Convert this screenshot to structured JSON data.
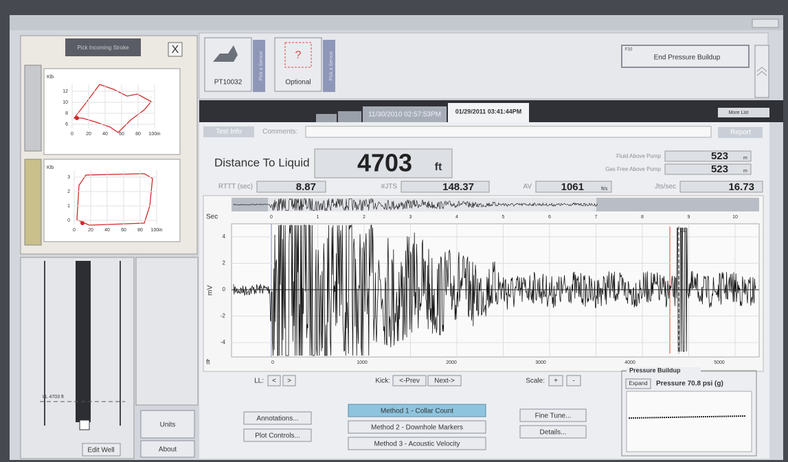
{
  "toolbar": {
    "sensor_1": "PT10032",
    "pick_1": "Pick a Sensor",
    "sensor_2_icon": "?",
    "sensor_2": "Optional",
    "pick_2": "Pick a Sensor",
    "end_key": "F10",
    "end_button": "End Pressure Buildup"
  },
  "tabs": [
    "11/30/2010 02:57:53PM",
    "01/29/2011 03:41:44PM"
  ],
  "more_list": "More List",
  "info": {
    "test_info": "Test Info",
    "comments": "Comments:",
    "report": "Report"
  },
  "results": {
    "distance_label": "Distance To Liquid",
    "distance": "4703",
    "distance_unit": "ft",
    "fluid_label": "Fluid Above Pump",
    "fluid": "523",
    "fluid_unit": "m",
    "gas_label": "Gas Free Above Pump",
    "gas": "523",
    "gas_unit": "m",
    "rttt_label": "RTTT (sec)",
    "rttt": "8.87",
    "jts_label": "#JTS",
    "jts": "148.37",
    "av_label": "AV",
    "av": "1061",
    "av_unit": "ft/s",
    "jps_label": "Jts/sec",
    "jps": "16.73"
  },
  "plot": {
    "sec_label": "Sec",
    "sec_ticks": [
      "0",
      "1",
      "2",
      "3",
      "4",
      "5",
      "6",
      "7",
      "8",
      "9",
      "10"
    ],
    "mv_label": "mV",
    "mv_ticks": [
      "4",
      "2",
      "0",
      "-2",
      "-4"
    ],
    "ft_label": "ft",
    "ft_ticks": [
      "0",
      "1000",
      "2000",
      "3000",
      "4000",
      "5000"
    ],
    "marker": "LL"
  },
  "controls": {
    "ll": "LL:",
    "ll_prev": "<",
    "ll_next": ">",
    "kick": "Kick:",
    "prev": "<-Prev",
    "next": "Next->",
    "scale": "Scale:",
    "plus": "+",
    "minus": "-"
  },
  "buttons": {
    "annotations": "Annotations...",
    "plot_controls": "Plot Controls...",
    "method_1": "Method 1 - Collar Count",
    "method_2": "Method 2 - Downhole Markers",
    "method_3": "Method 3 - Acoustic Velocity",
    "fine_tune": "Fine Tune...",
    "details": "Details...",
    "units": "Units",
    "about": "About",
    "edit_well": "Edit Well"
  },
  "pressure": {
    "title": "Pressure Buildup",
    "expand": "Expand",
    "reading": "Pressure 70.8 psi (g)"
  },
  "dyno": {
    "title": "Pick Incoming Stroke",
    "close": "X",
    "card_1": {
      "y_label": "Klb",
      "yticks": [
        "12",
        "10",
        "8",
        "6"
      ],
      "xticks": [
        "0",
        "20",
        "40",
        "60",
        "80",
        "100in"
      ]
    },
    "card_2": {
      "y_label": "Klb",
      "yticks": [
        "3",
        "2",
        "1",
        "0"
      ],
      "xticks": [
        "0",
        "20",
        "40",
        "60",
        "80",
        "100in"
      ]
    }
  },
  "well": {
    "ll_marker": "LL 4703 ft"
  }
}
